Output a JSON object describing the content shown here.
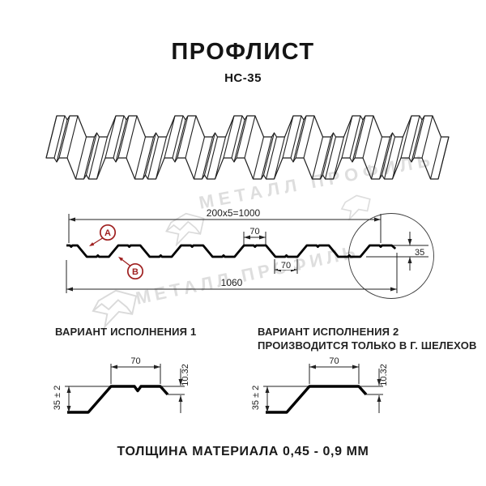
{
  "title": "ПРОФЛИСТ",
  "subtitle": "НС-35",
  "watermark": {
    "text": "МЕТАЛЛ ПРОФИЛЬ",
    "logo": "metall-profil-logo"
  },
  "cross_section": {
    "dim_top_total": "200x5=1000",
    "dim_top_rib_width": "70",
    "dim_bottom_rib_width": "70",
    "dim_overall_width": "1060",
    "dim_height": "35",
    "callout_a": "А",
    "callout_b": "В"
  },
  "variants": [
    {
      "title": "ВАРИАНТ ИСПОЛНЕНИЯ 1",
      "note": "",
      "dim_rib_width": "70",
      "dim_height": "35 ± 2",
      "dim_lip": "10.32"
    },
    {
      "title": "ВАРИАНТ ИСПОЛНЕНИЯ 2",
      "note": "ПРОИЗВОДИТСЯ ТОЛЬКО В Г. ШЕЛЕХОВ",
      "dim_rib_width": "70",
      "dim_height": "35 ± 2",
      "dim_lip": "10.32"
    }
  ],
  "footer": {
    "text": "ТОЛЩИНА МАТЕРИАЛА 0,45 - 0,9 ММ"
  },
  "colors": {
    "accent_red": "#9f2020",
    "line": "#1f1f1f",
    "watermark": "#c9c9c9"
  }
}
